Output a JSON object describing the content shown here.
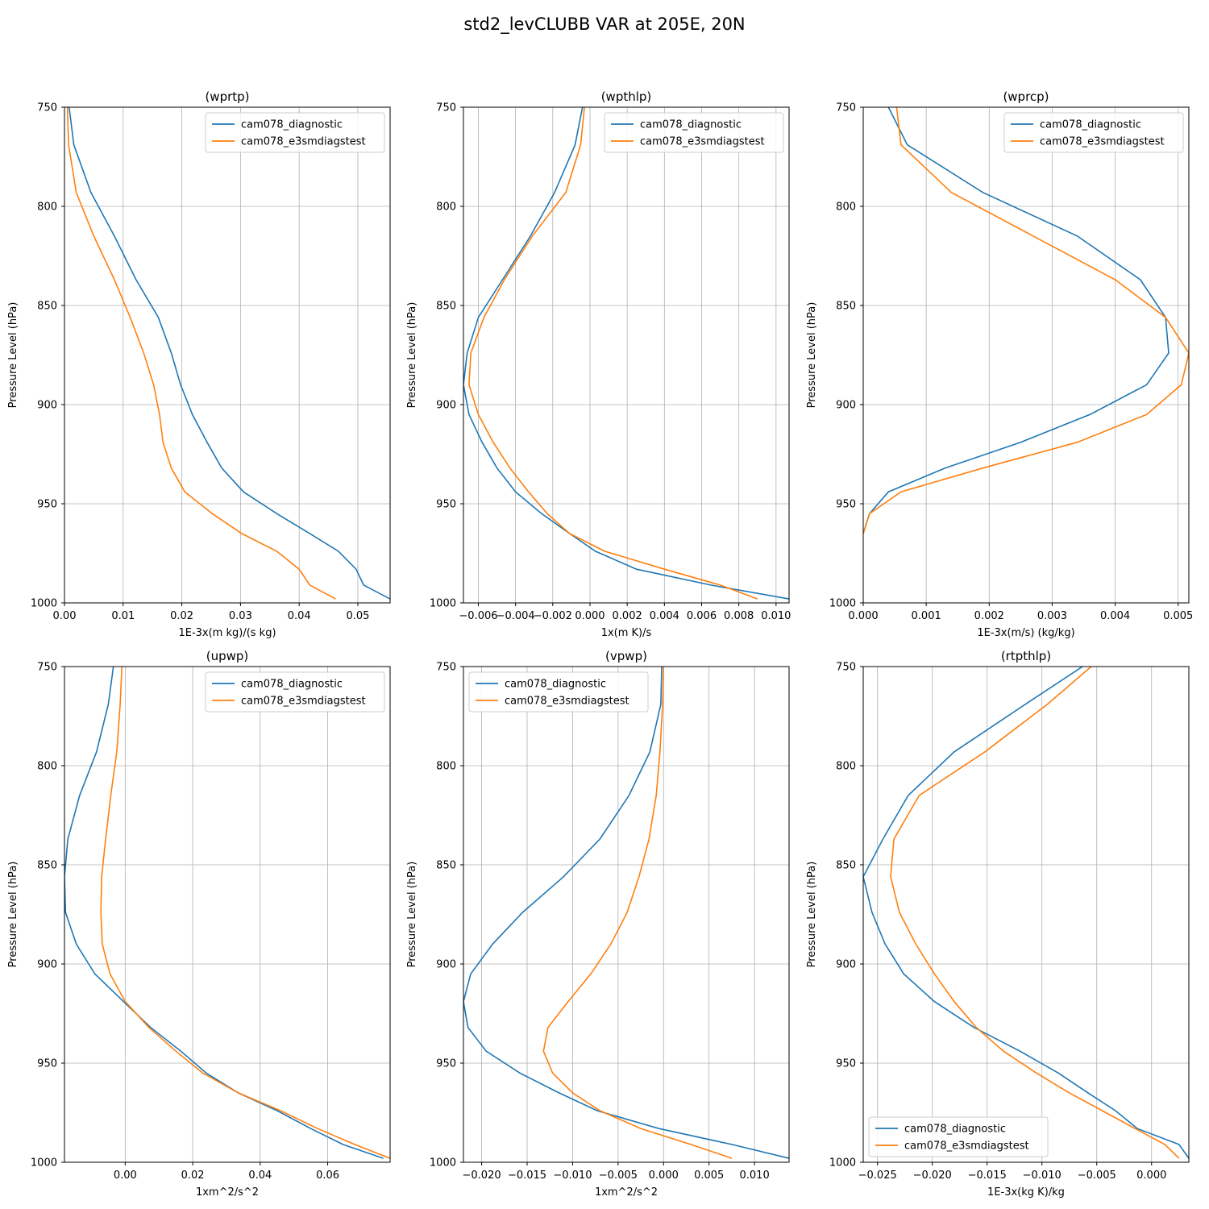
{
  "title": "std2_levCLUBB VAR at 205E, 20N",
  "colors": {
    "diagnostic": "#1f77b4",
    "e3smdiagstest": "#ff7f0e",
    "grid": "#b0b0b0"
  },
  "chart_data": [
    {
      "type": "line",
      "title": "(wprtp)",
      "xlabel": "1E-3x(m kg)/(s kg)",
      "ylabel": "Pressure Level (hPa)",
      "xlim": [
        0.0,
        0.0555
      ],
      "ylim": [
        1000,
        750
      ],
      "xticks": [
        0.0,
        0.01,
        0.02,
        0.03,
        0.04,
        0.05
      ],
      "xtick_labels": [
        "0.00",
        "0.01",
        "0.02",
        "0.03",
        "0.04",
        "0.05"
      ],
      "yticks": [
        750,
        800,
        850,
        900,
        950,
        1000
      ],
      "ytick_labels": [
        "750",
        "800",
        "850",
        "900",
        "950",
        "1000"
      ],
      "grid": true,
      "legend": "upper right",
      "series": [
        {
          "name": "cam078_diagnostic",
          "x": [
            0.0008,
            0.0016,
            0.0045,
            0.0085,
            0.0122,
            0.016,
            0.0182,
            0.0198,
            0.0218,
            0.0243,
            0.0268,
            0.0305,
            0.0362,
            0.0418,
            0.0467,
            0.0497,
            0.051,
            0.0555
          ],
          "y": [
            750,
            769,
            793,
            815,
            837,
            856,
            874,
            890,
            905,
            919,
            932,
            944,
            955,
            965,
            974,
            983,
            991,
            998
          ]
        },
        {
          "name": "cam078_e3smdiagstest",
          "x": [
            0.0005,
            0.0007,
            0.002,
            0.005,
            0.0085,
            0.0112,
            0.0135,
            0.0152,
            0.0162,
            0.0168,
            0.0182,
            0.0205,
            0.0252,
            0.0302,
            0.0362,
            0.04,
            0.0418,
            0.0462
          ],
          "y": [
            750,
            769,
            793,
            815,
            837,
            856,
            874,
            890,
            905,
            919,
            932,
            944,
            955,
            965,
            974,
            983,
            991,
            998
          ]
        }
      ]
    },
    {
      "type": "line",
      "title": "(wpthlp)",
      "xlabel": "1x(m K)/s",
      "ylabel": "Pressure Level (hPa)",
      "xlim": [
        -0.0068,
        0.0107
      ],
      "ylim": [
        1000,
        750
      ],
      "xticks": [
        -0.006,
        -0.004,
        -0.002,
        0.0,
        0.002,
        0.004,
        0.006,
        0.008,
        0.01
      ],
      "xtick_labels": [
        "−0.006",
        "−0.004",
        "−0.002",
        "0.000",
        "0.002",
        "0.004",
        "0.006",
        "0.008",
        "0.010"
      ],
      "yticks": [
        750,
        800,
        850,
        900,
        950,
        1000
      ],
      "ytick_labels": [
        "750",
        "800",
        "850",
        "900",
        "950",
        "1000"
      ],
      "grid": true,
      "legend": "upper right",
      "series": [
        {
          "name": "cam078_diagnostic",
          "x": [
            -0.0004,
            -0.0008,
            -0.0019,
            -0.0032,
            -0.0047,
            -0.006,
            -0.0066,
            -0.0068,
            -0.0065,
            -0.0058,
            -0.005,
            -0.004,
            -0.0026,
            -0.0011,
            0.0003,
            0.0025,
            0.0065,
            0.0107
          ],
          "y": [
            750,
            769,
            793,
            815,
            837,
            856,
            874,
            890,
            905,
            919,
            932,
            944,
            955,
            965,
            974,
            983,
            991,
            998
          ]
        },
        {
          "name": "cam078_e3smdiagstest",
          "x": [
            -0.0003,
            -0.0005,
            -0.0013,
            -0.0031,
            -0.0046,
            -0.0057,
            -0.0064,
            -0.0065,
            -0.006,
            -0.0052,
            -0.0043,
            -0.0033,
            -0.0023,
            -0.0011,
            0.0008,
            0.004,
            0.007,
            0.009
          ],
          "y": [
            750,
            769,
            793,
            815,
            837,
            856,
            874,
            890,
            905,
            919,
            932,
            944,
            955,
            965,
            974,
            983,
            991,
            998
          ]
        }
      ]
    },
    {
      "type": "line",
      "title": "(wprcp)",
      "xlabel": "1E-3x(m/s) (kg/kg)",
      "ylabel": "Pressure Level (hPa)",
      "xlim": [
        0.0,
        0.00517
      ],
      "ylim": [
        1000,
        750
      ],
      "xticks": [
        0.0,
        0.001,
        0.002,
        0.003,
        0.004,
        0.005
      ],
      "xtick_labels": [
        "0.000",
        "0.001",
        "0.002",
        "0.003",
        "0.004",
        "0.005"
      ],
      "yticks": [
        750,
        800,
        850,
        900,
        950,
        1000
      ],
      "ytick_labels": [
        "750",
        "800",
        "850",
        "900",
        "950",
        "1000"
      ],
      "grid": true,
      "legend": "upper right",
      "series": [
        {
          "name": "cam078_diagnostic",
          "x": [
            0.0004,
            0.0007,
            0.0019,
            0.0034,
            0.0044,
            0.0048,
            0.00485,
            0.0045,
            0.0036,
            0.0025,
            0.0013,
            0.0004,
            0.0001,
            0.0
          ],
          "y": [
            750,
            769,
            793,
            815,
            837,
            856,
            874,
            890,
            905,
            919,
            932,
            944,
            955,
            965
          ]
        },
        {
          "name": "cam078_e3smdiagstest",
          "x": [
            0.00053,
            0.0006,
            0.0014,
            0.0027,
            0.004,
            0.0048,
            0.00517,
            0.00505,
            0.0045,
            0.0034,
            0.0019,
            0.0006,
            0.0001,
            0.0
          ],
          "y": [
            750,
            769,
            793,
            815,
            837,
            856,
            874,
            890,
            905,
            919,
            932,
            944,
            955,
            965
          ]
        }
      ]
    },
    {
      "type": "line",
      "title": "(upwp)",
      "xlabel": "1xm^2/s^2",
      "ylabel": "Pressure Level (hPa)",
      "xlim": [
        -0.018,
        0.0785
      ],
      "ylim": [
        1000,
        750
      ],
      "xticks": [
        0.0,
        0.02,
        0.04,
        0.06
      ],
      "xtick_labels": [
        "0.00",
        "0.02",
        "0.04",
        "0.06"
      ],
      "yticks": [
        750,
        800,
        850,
        900,
        950,
        1000
      ],
      "ytick_labels": [
        "750",
        "800",
        "850",
        "900",
        "950",
        "1000"
      ],
      "grid": true,
      "legend": "upper right",
      "series": [
        {
          "name": "cam078_diagnostic",
          "x": [
            -0.0035,
            -0.005,
            -0.0085,
            -0.0135,
            -0.017,
            -0.018,
            -0.0177,
            -0.0145,
            -0.009,
            -0.0005,
            0.0075,
            0.0165,
            0.024,
            0.0335,
            0.045,
            0.055,
            0.0645,
            0.0765
          ],
          "y": [
            750,
            769,
            793,
            815,
            837,
            856,
            874,
            890,
            905,
            919,
            932,
            944,
            955,
            965,
            974,
            983,
            991,
            998
          ]
        },
        {
          "name": "cam078_e3smdiagstest",
          "x": [
            -0.001,
            -0.0015,
            -0.0025,
            -0.0043,
            -0.0058,
            -0.007,
            -0.0072,
            -0.0068,
            -0.0045,
            0.0,
            0.007,
            0.015,
            0.023,
            0.0335,
            0.046,
            0.057,
            0.068,
            0.0785
          ],
          "y": [
            750,
            769,
            793,
            815,
            837,
            856,
            874,
            890,
            905,
            919,
            932,
            944,
            955,
            965,
            974,
            983,
            991,
            998
          ]
        }
      ]
    },
    {
      "type": "line",
      "title": "(vpwp)",
      "xlabel": "1xm^2/s^2",
      "ylabel": "Pressure Level (hPa)",
      "xlim": [
        -0.022,
        0.0138
      ],
      "ylim": [
        1000,
        750
      ],
      "xticks": [
        -0.02,
        -0.015,
        -0.01,
        -0.005,
        0.0,
        0.005,
        0.01
      ],
      "xtick_labels": [
        "−0.020",
        "−0.015",
        "−0.010",
        "−0.005",
        "0.000",
        "0.005",
        "0.010"
      ],
      "yticks": [
        750,
        800,
        850,
        900,
        950,
        1000
      ],
      "ytick_labels": [
        "750",
        "800",
        "850",
        "900",
        "950",
        "1000"
      ],
      "grid": true,
      "legend": "upper left",
      "series": [
        {
          "name": "cam078_diagnostic",
          "x": [
            -0.0002,
            -0.0003,
            -0.0015,
            -0.0038,
            -0.007,
            -0.011,
            -0.0155,
            -0.0188,
            -0.0212,
            -0.022,
            -0.0215,
            -0.0195,
            -0.0158,
            -0.0115,
            -0.0073,
            -0.0005,
            0.0075,
            0.0138
          ],
          "y": [
            750,
            769,
            793,
            815,
            837,
            856,
            874,
            890,
            905,
            919,
            932,
            944,
            955,
            965,
            974,
            983,
            991,
            998
          ]
        },
        {
          "name": "cam078_e3smdiagstest",
          "x": [
            0.0,
            -0.0001,
            -0.0004,
            -0.0008,
            -0.0016,
            -0.0027,
            -0.004,
            -0.0058,
            -0.008,
            -0.0105,
            -0.0127,
            -0.0132,
            -0.0122,
            -0.01,
            -0.007,
            -0.0025,
            0.003,
            0.0075
          ],
          "y": [
            750,
            769,
            793,
            815,
            837,
            856,
            874,
            890,
            905,
            919,
            932,
            944,
            955,
            965,
            974,
            983,
            991,
            998
          ]
        }
      ]
    },
    {
      "type": "line",
      "title": "(rtpthlp)",
      "xlabel": "1E-3x(kg K)/kg",
      "ylabel": "Pressure Level (hPa)",
      "xlim": [
        -0.0263,
        0.0034
      ],
      "ylim": [
        1000,
        750
      ],
      "xticks": [
        -0.025,
        -0.02,
        -0.015,
        -0.01,
        -0.005,
        0.0
      ],
      "xtick_labels": [
        "−0.025",
        "−0.020",
        "−0.015",
        "−0.010",
        "−0.005",
        "0.000"
      ],
      "yticks": [
        750,
        800,
        850,
        900,
        950,
        1000
      ],
      "ytick_labels": [
        "750",
        "800",
        "850",
        "900",
        "950",
        "1000"
      ],
      "grid": true,
      "legend": "lower left",
      "series": [
        {
          "name": "cam078_diagnostic",
          "x": [
            -0.0063,
            -0.0115,
            -0.018,
            -0.0222,
            -0.0245,
            -0.0263,
            -0.0255,
            -0.0243,
            -0.0226,
            -0.0198,
            -0.0162,
            -0.012,
            -0.0085,
            -0.0058,
            -0.0033,
            -0.0013,
            0.0025,
            0.0034
          ],
          "y": [
            750,
            769,
            793,
            815,
            837,
            856,
            874,
            890,
            905,
            919,
            932,
            944,
            955,
            965,
            974,
            983,
            991,
            998
          ]
        },
        {
          "name": "cam078_e3smdiagstest",
          "x": [
            -0.0055,
            -0.0095,
            -0.0152,
            -0.0212,
            -0.0235,
            -0.0238,
            -0.023,
            -0.0215,
            -0.0198,
            -0.018,
            -0.016,
            -0.0135,
            -0.0105,
            -0.0075,
            -0.0045,
            -0.0015,
            0.0012,
            0.0025
          ],
          "y": [
            750,
            769,
            793,
            815,
            837,
            856,
            874,
            890,
            905,
            919,
            932,
            944,
            955,
            965,
            974,
            983,
            991,
            998
          ]
        }
      ]
    }
  ]
}
